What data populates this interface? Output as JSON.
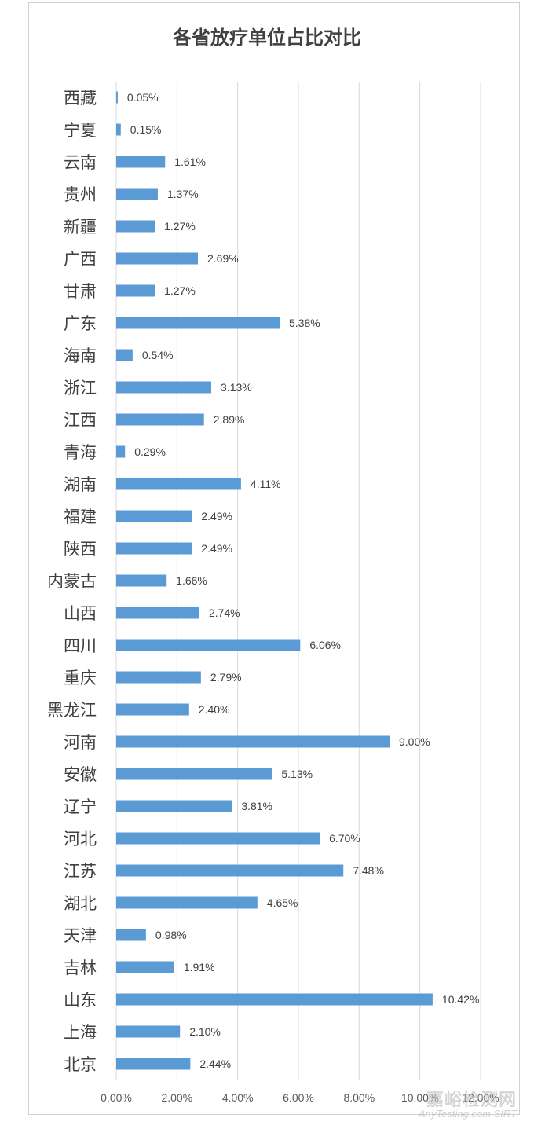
{
  "chart_data": {
    "type": "bar",
    "orientation": "horizontal",
    "title": "各省放疗单位占比对比",
    "categories": [
      "西藏",
      "宁夏",
      "云南",
      "贵州",
      "新疆",
      "广西",
      "甘肃",
      "广东",
      "海南",
      "浙江",
      "江西",
      "青海",
      "湖南",
      "福建",
      "陕西",
      "内蒙古",
      "山西",
      "四川",
      "重庆",
      "黑龙江",
      "河南",
      "安徽",
      "辽宁",
      "河北",
      "江苏",
      "湖北",
      "天津",
      "吉林",
      "山东",
      "上海",
      "北京"
    ],
    "values": [
      0.05,
      0.15,
      1.61,
      1.37,
      1.27,
      2.69,
      1.27,
      5.38,
      0.54,
      3.13,
      2.89,
      0.29,
      4.11,
      2.49,
      2.49,
      1.66,
      2.74,
      6.06,
      2.79,
      2.4,
      9.0,
      5.13,
      3.81,
      6.7,
      7.48,
      4.65,
      0.98,
      1.91,
      10.42,
      2.1,
      2.44
    ],
    "value_labels": [
      "0.05%",
      "0.15%",
      "1.61%",
      "1.37%",
      "1.27%",
      "2.69%",
      "1.27%",
      "5.38%",
      "0.54%",
      "3.13%",
      "2.89%",
      "0.29%",
      "4.11%",
      "2.49%",
      "2.49%",
      "1.66%",
      "2.74%",
      "6.06%",
      "2.79%",
      "2.40%",
      "9.00%",
      "5.13%",
      "3.81%",
      "6.70%",
      "7.48%",
      "4.65%",
      "0.98%",
      "1.91%",
      "10.42%",
      "2.10%",
      "2.44%"
    ],
    "xlim": [
      0,
      12
    ],
    "x_ticks": [
      "0.00%",
      "2.00%",
      "4.00%",
      "6.00%",
      "8.00%",
      "10.00%",
      "12.00%"
    ],
    "grid": "vertical",
    "bar_color": "#5b9bd5"
  },
  "watermark": {
    "main": "嘉峪检测网",
    "sub": "AnyTesting.com",
    "corner": "SIRT"
  }
}
